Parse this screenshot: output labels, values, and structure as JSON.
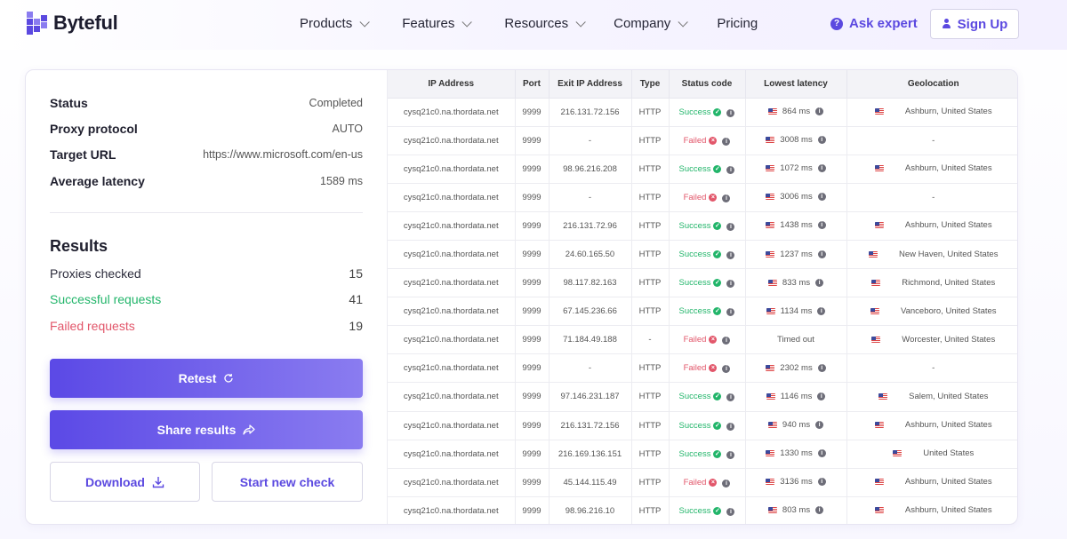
{
  "brand": {
    "name": "Byteful",
    "accent": "#5b49e0"
  },
  "nav": {
    "items": [
      {
        "label": "Products",
        "dropdown": true
      },
      {
        "label": "Features",
        "dropdown": true
      },
      {
        "label": "Resources",
        "dropdown": true
      },
      {
        "label": "Company",
        "dropdown": true
      },
      {
        "label": "Pricing",
        "dropdown": false
      }
    ],
    "ask_expert": "Ask expert",
    "sign_up": "Sign Up"
  },
  "summary": {
    "status_label": "Status",
    "status_value": "Completed",
    "protocol_label": "Proxy protocol",
    "protocol_value": "AUTO",
    "target_label": "Target URL",
    "target_value": "https://www.microsoft.com/en-us",
    "latency_label": "Average latency",
    "latency_value": "1589 ms"
  },
  "results": {
    "title": "Results",
    "checked_label": "Proxies checked",
    "checked_value": "15",
    "success_label": "Successful requests",
    "success_value": "41",
    "failed_label": "Failed requests",
    "failed_value": "19"
  },
  "actions": {
    "retest": "Retest",
    "share": "Share results",
    "download": "Download",
    "new_check": "Start new check"
  },
  "table": {
    "headers": [
      "IP Address",
      "Port",
      "Exit IP Address",
      "Type",
      "Status code",
      "Lowest latency",
      "Geolocation"
    ],
    "rows": [
      {
        "ip": "cysq21c0.na.thordata.net",
        "port": "9999",
        "exit": "216.131.72.156",
        "type": "HTTP",
        "status": "Success",
        "ok": true,
        "latency": "864 ms",
        "geo": "Ashburn, United States"
      },
      {
        "ip": "cysq21c0.na.thordata.net",
        "port": "9999",
        "exit": "-",
        "type": "HTTP",
        "status": "Failed",
        "ok": false,
        "latency": "3008 ms",
        "geo": "-"
      },
      {
        "ip": "cysq21c0.na.thordata.net",
        "port": "9999",
        "exit": "98.96.216.208",
        "type": "HTTP",
        "status": "Success",
        "ok": true,
        "latency": "1072 ms",
        "geo": "Ashburn, United States"
      },
      {
        "ip": "cysq21c0.na.thordata.net",
        "port": "9999",
        "exit": "-",
        "type": "HTTP",
        "status": "Failed",
        "ok": false,
        "latency": "3006 ms",
        "geo": "-"
      },
      {
        "ip": "cysq21c0.na.thordata.net",
        "port": "9999",
        "exit": "216.131.72.96",
        "type": "HTTP",
        "status": "Success",
        "ok": true,
        "latency": "1438 ms",
        "geo": "Ashburn, United States"
      },
      {
        "ip": "cysq21c0.na.thordata.net",
        "port": "9999",
        "exit": "24.60.165.50",
        "type": "HTTP",
        "status": "Success",
        "ok": true,
        "latency": "1237 ms",
        "geo": "New Haven, United States"
      },
      {
        "ip": "cysq21c0.na.thordata.net",
        "port": "9999",
        "exit": "98.117.82.163",
        "type": "HTTP",
        "status": "Success",
        "ok": true,
        "latency": "833 ms",
        "geo": "Richmond, United States"
      },
      {
        "ip": "cysq21c0.na.thordata.net",
        "port": "9999",
        "exit": "67.145.236.66",
        "type": "HTTP",
        "status": "Success",
        "ok": true,
        "latency": "1134 ms",
        "geo": "Vanceboro, United States"
      },
      {
        "ip": "cysq21c0.na.thordata.net",
        "port": "9999",
        "exit": "71.184.49.188",
        "type": "-",
        "status": "Failed",
        "ok": false,
        "latency": "Timed out",
        "geo": "Worcester, United States"
      },
      {
        "ip": "cysq21c0.na.thordata.net",
        "port": "9999",
        "exit": "-",
        "type": "HTTP",
        "status": "Failed",
        "ok": false,
        "latency": "2302 ms",
        "geo": "-"
      },
      {
        "ip": "cysq21c0.na.thordata.net",
        "port": "9999",
        "exit": "97.146.231.187",
        "type": "HTTP",
        "status": "Success",
        "ok": true,
        "latency": "1146 ms",
        "geo": "Salem, United States"
      },
      {
        "ip": "cysq21c0.na.thordata.net",
        "port": "9999",
        "exit": "216.131.72.156",
        "type": "HTTP",
        "status": "Success",
        "ok": true,
        "latency": "940 ms",
        "geo": "Ashburn, United States"
      },
      {
        "ip": "cysq21c0.na.thordata.net",
        "port": "9999",
        "exit": "216.169.136.151",
        "type": "HTTP",
        "status": "Success",
        "ok": true,
        "latency": "1330 ms",
        "geo": "United States"
      },
      {
        "ip": "cysq21c0.na.thordata.net",
        "port": "9999",
        "exit": "45.144.115.49",
        "type": "HTTP",
        "status": "Failed",
        "ok": false,
        "latency": "3136 ms",
        "geo": "Ashburn, United States"
      },
      {
        "ip": "cysq21c0.na.thordata.net",
        "port": "9999",
        "exit": "98.96.216.10",
        "type": "HTTP",
        "status": "Success",
        "ok": true,
        "latency": "803 ms",
        "geo": "Ashburn, United States"
      }
    ]
  }
}
